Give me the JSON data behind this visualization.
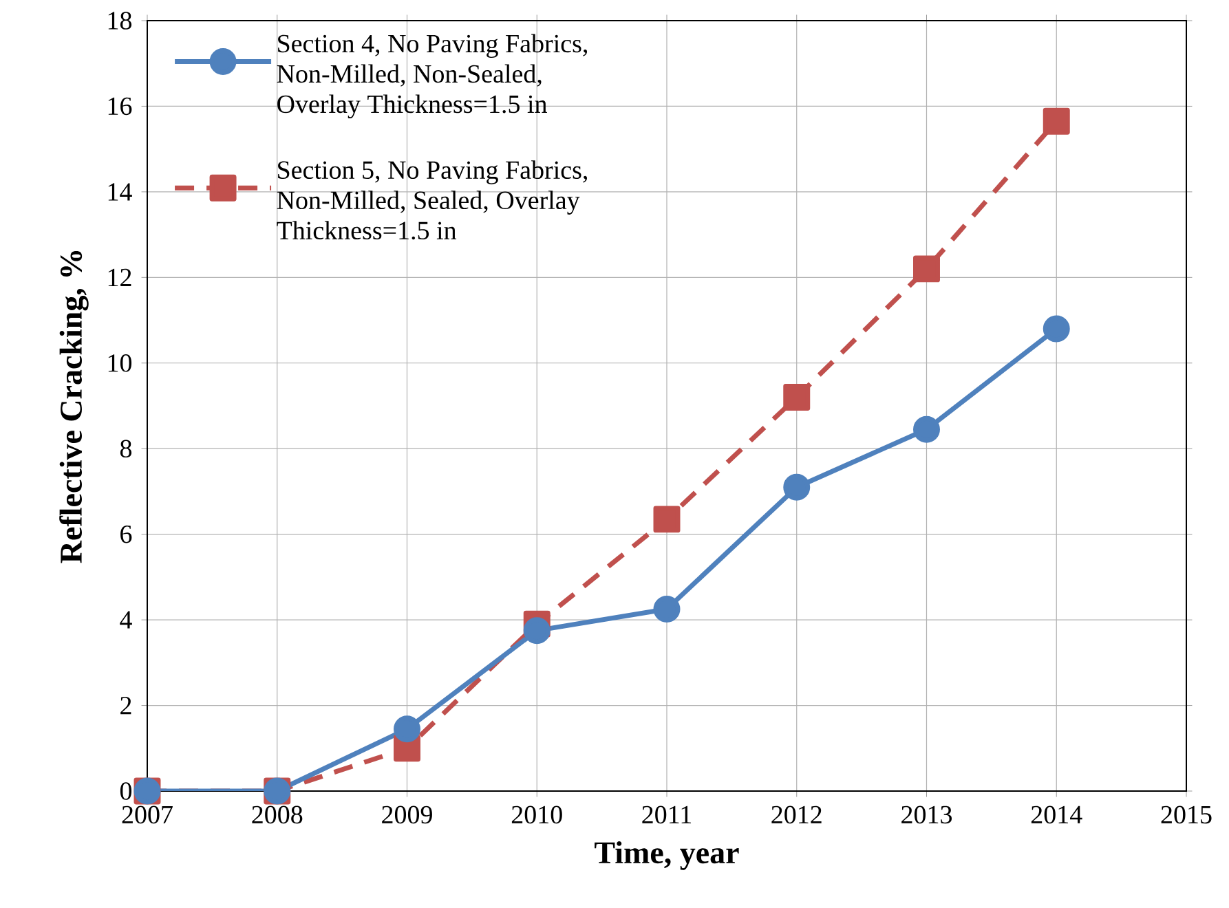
{
  "chart_data": {
    "type": "line",
    "xlabel": "Time, year",
    "ylabel": "Reflective Cracking, %",
    "x": [
      2007,
      2008,
      2009,
      2010,
      2011,
      2012,
      2013,
      2014
    ],
    "series": [
      {
        "name": "Section 4,  No Paving Fabrics, Non-Milled, Non-Sealed, Overlay Thickness=1.5 in",
        "color": "#4f81bd",
        "marker": "circle",
        "line_style": "solid",
        "values": [
          0,
          0,
          1.45,
          3.75,
          4.25,
          7.1,
          8.45,
          10.8
        ]
      },
      {
        "name": "Section 5, No Paving Fabrics, Non-Milled, Sealed, Overlay Thickness=1.5 in",
        "color": "#c0504d",
        "marker": "square",
        "line_style": "dashed",
        "values": [
          0,
          0,
          1.0,
          3.9,
          6.35,
          9.2,
          12.2,
          15.65
        ]
      }
    ],
    "xlim": [
      2007,
      2015
    ],
    "xticks": [
      2007,
      2008,
      2009,
      2010,
      2011,
      2012,
      2013,
      2014,
      2015
    ],
    "ylim": [
      0,
      18
    ],
    "yticks": [
      0,
      2,
      4,
      6,
      8,
      10,
      12,
      14,
      16,
      18
    ],
    "grid": true,
    "legend": "top left"
  }
}
